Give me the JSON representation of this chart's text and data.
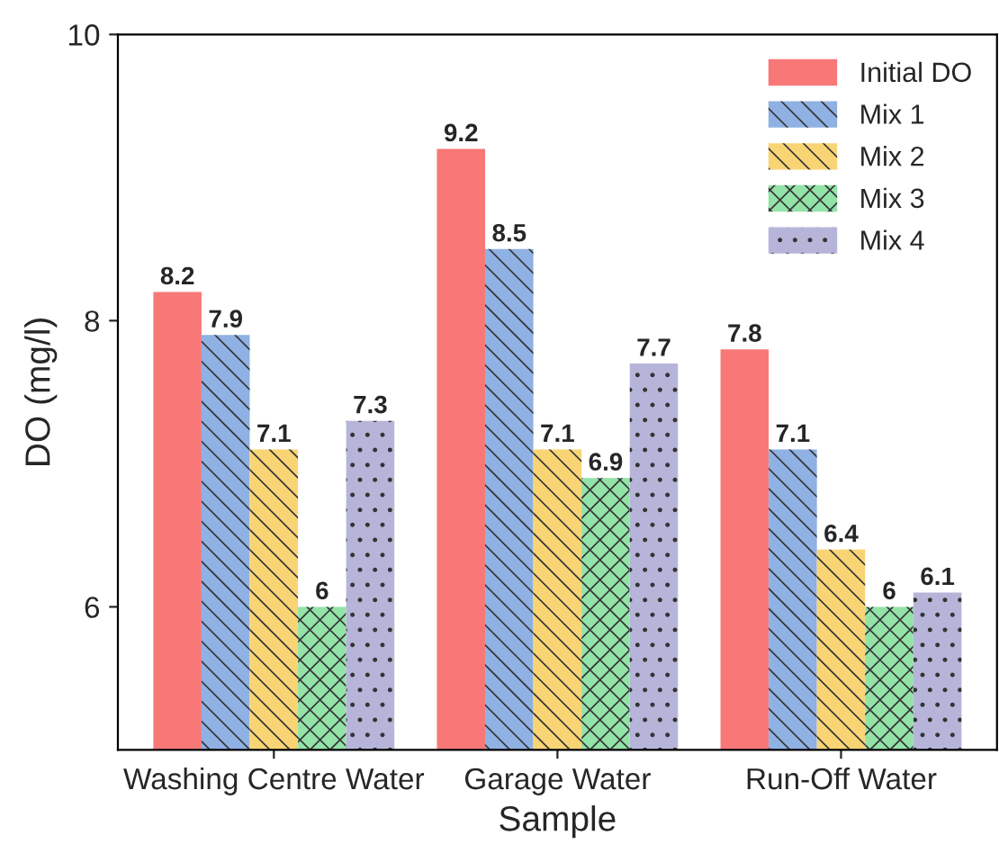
{
  "chart_data": {
    "type": "bar",
    "xlabel": "Sample",
    "ylabel": "DO (mg/l)",
    "categories": [
      "Washing Centre Water",
      "Garage Water",
      "Run-Off Water"
    ],
    "series": [
      {
        "name": "Initial DO",
        "color": "#f87878",
        "values": [
          8.2,
          9.2,
          7.8
        ]
      },
      {
        "name": "Mix 1",
        "color": "#8fb1e3",
        "values": [
          7.9,
          8.5,
          7.1
        ]
      },
      {
        "name": "Mix 2",
        "color": "#f8d475",
        "values": [
          7.1,
          7.1,
          6.4
        ]
      },
      {
        "name": "Mix 3",
        "color": "#93e2a8",
        "values": [
          6,
          6.9,
          6
        ]
      },
      {
        "name": "Mix 4",
        "color": "#b6b5d9",
        "values": [
          7.3,
          7.7,
          6.1
        ]
      }
    ],
    "ylim": [
      5,
      10
    ],
    "yticks": [
      6,
      8,
      10
    ],
    "data_labels": true,
    "legend": "top right",
    "grid": false
  }
}
